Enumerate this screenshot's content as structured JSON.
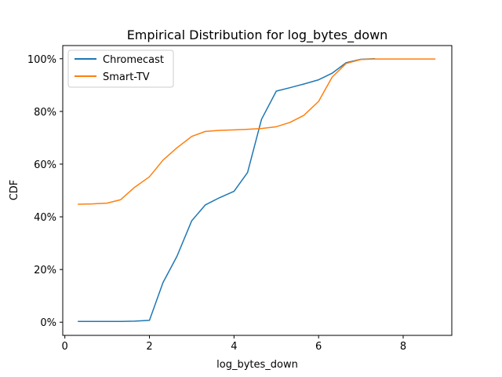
{
  "chart_data": {
    "type": "line",
    "title": "Empirical Distribution for log_bytes_down",
    "xlabel": "log_bytes_down",
    "ylabel": "CDF",
    "xlim": [
      -0.05,
      9.15
    ],
    "ylim": [
      -0.05,
      1.05
    ],
    "x_ticks": [
      0,
      2,
      4,
      6,
      8
    ],
    "x_tick_labels": [
      "0",
      "2",
      "4",
      "6",
      "8"
    ],
    "y_ticks": [
      0,
      0.2,
      0.4,
      0.6,
      0.8,
      1.0
    ],
    "y_tick_labels": [
      "0%",
      "20%",
      "40%",
      "60%",
      "80%",
      "100%"
    ],
    "grid": false,
    "legend_position": "top-left",
    "series": [
      {
        "name": "Chromecast",
        "color": "#1f77b4",
        "x": [
          0.32,
          0.65,
          1.0,
          1.32,
          1.65,
          2.0,
          2.32,
          2.65,
          3.0,
          3.32,
          3.65,
          4.0,
          4.32,
          4.65,
          5.0,
          5.32,
          5.65,
          6.0,
          6.32,
          6.65,
          7.0,
          7.32
        ],
        "y": [
          0.003,
          0.003,
          0.003,
          0.003,
          0.004,
          0.007,
          0.15,
          0.25,
          0.385,
          0.445,
          0.472,
          0.497,
          0.568,
          0.77,
          0.877,
          0.89,
          0.904,
          0.92,
          0.945,
          0.985,
          0.998,
          1.0
        ]
      },
      {
        "name": "Smart-TV",
        "color": "#ff7f0e",
        "x": [
          0.32,
          0.65,
          1.0,
          1.32,
          1.65,
          2.0,
          2.32,
          2.65,
          3.0,
          3.32,
          3.65,
          4.0,
          4.32,
          4.65,
          5.0,
          5.32,
          5.65,
          6.0,
          6.32,
          6.65,
          7.0,
          7.32,
          7.65,
          8.0,
          8.32,
          8.75
        ],
        "y": [
          0.448,
          0.449,
          0.452,
          0.465,
          0.512,
          0.552,
          0.615,
          0.662,
          0.705,
          0.724,
          0.728,
          0.73,
          0.732,
          0.735,
          0.742,
          0.758,
          0.785,
          0.838,
          0.93,
          0.982,
          0.997,
          0.999,
          0.999,
          0.999,
          0.999,
          0.999
        ]
      }
    ]
  }
}
